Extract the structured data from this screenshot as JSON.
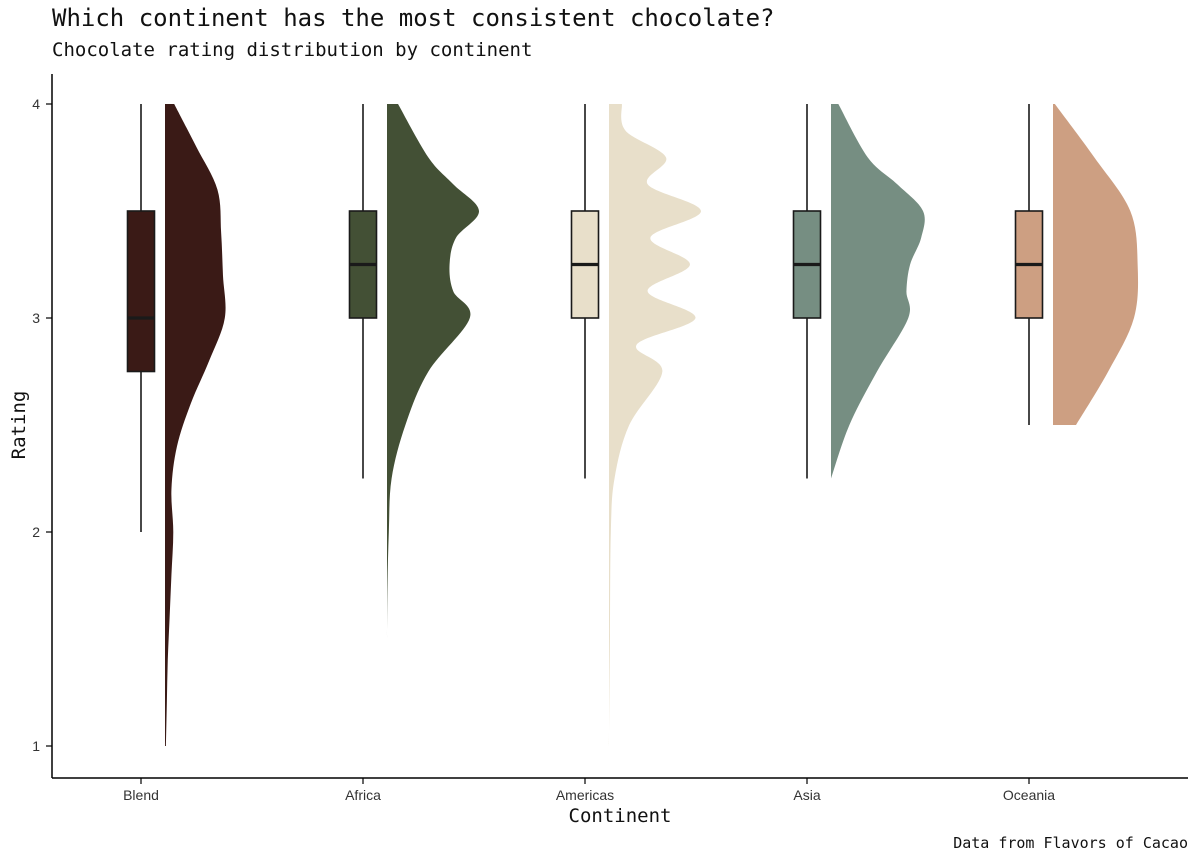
{
  "title": "Which continent has the most consistent chocolate?",
  "subtitle": "Chocolate rating distribution by continent",
  "caption": "Data from Flavors of Cacao",
  "chart_data": {
    "type": "raincloud",
    "xlabel": "Continent",
    "ylabel": "Rating",
    "ylim": [
      0.86,
      4.0
    ],
    "yticks": [
      1,
      2,
      3,
      4
    ],
    "grid": false,
    "legend": "none",
    "categories": [
      "Blend",
      "Africa",
      "Americas",
      "Asia",
      "Oceania"
    ],
    "series": [
      {
        "category": "Blend",
        "color": "#3a1a16",
        "box": {
          "min": 2.0,
          "q1": 2.75,
          "median": 3.0,
          "q3": 3.5,
          "max": 4.0
        },
        "density": [
          [
            1.0,
            0.01
          ],
          [
            1.2,
            0.02
          ],
          [
            1.4,
            0.03
          ],
          [
            1.6,
            0.05
          ],
          [
            1.8,
            0.07
          ],
          [
            2.0,
            0.09
          ],
          [
            2.2,
            0.07
          ],
          [
            2.4,
            0.13
          ],
          [
            2.6,
            0.28
          ],
          [
            2.8,
            0.48
          ],
          [
            3.0,
            0.65
          ],
          [
            3.2,
            0.63
          ],
          [
            3.4,
            0.61
          ],
          [
            3.6,
            0.57
          ],
          [
            3.8,
            0.34
          ],
          [
            4.0,
            0.1
          ]
        ]
      },
      {
        "category": "Africa",
        "color": "#435035",
        "box": {
          "min": 2.25,
          "q1": 3.0,
          "median": 3.25,
          "q3": 3.5,
          "max": 4.0
        },
        "density": [
          [
            1.5,
            0.0
          ],
          [
            1.75,
            0.005
          ],
          [
            2.0,
            0.02
          ],
          [
            2.25,
            0.05
          ],
          [
            2.5,
            0.2
          ],
          [
            2.75,
            0.45
          ],
          [
            3.0,
            0.9
          ],
          [
            3.125,
            0.72
          ],
          [
            3.25,
            0.68
          ],
          [
            3.375,
            0.75
          ],
          [
            3.5,
            1.0
          ],
          [
            3.625,
            0.72
          ],
          [
            3.75,
            0.45
          ],
          [
            4.0,
            0.12
          ]
        ]
      },
      {
        "category": "Americas",
        "color": "#e8dfca",
        "box": {
          "min": 2.25,
          "q1": 3.0,
          "median": 3.25,
          "q3": 3.5,
          "max": 4.0
        },
        "density": [
          [
            1.0,
            0.0
          ],
          [
            1.5,
            0.01
          ],
          [
            2.0,
            0.02
          ],
          [
            2.25,
            0.06
          ],
          [
            2.5,
            0.22
          ],
          [
            2.75,
            0.58
          ],
          [
            2.875,
            0.3
          ],
          [
            3.0,
            0.94
          ],
          [
            3.125,
            0.42
          ],
          [
            3.25,
            0.88
          ],
          [
            3.375,
            0.45
          ],
          [
            3.5,
            1.0
          ],
          [
            3.625,
            0.42
          ],
          [
            3.75,
            0.62
          ],
          [
            3.875,
            0.18
          ],
          [
            4.0,
            0.14
          ]
        ]
      },
      {
        "category": "Asia",
        "color": "#768e82",
        "box": {
          "min": 2.25,
          "q1": 3.0,
          "median": 3.25,
          "q3": 3.5,
          "max": 4.0
        },
        "density": [
          [
            2.25,
            0.0
          ],
          [
            2.5,
            0.2
          ],
          [
            2.75,
            0.5
          ],
          [
            3.0,
            0.84
          ],
          [
            3.125,
            0.82
          ],
          [
            3.25,
            0.86
          ],
          [
            3.375,
            0.98
          ],
          [
            3.5,
            1.0
          ],
          [
            3.625,
            0.72
          ],
          [
            3.75,
            0.4
          ],
          [
            4.0,
            0.08
          ]
        ]
      },
      {
        "category": "Oceania",
        "color": "#cd9f82",
        "box": {
          "min": 2.5,
          "q1": 3.0,
          "median": 3.25,
          "q3": 3.5,
          "max": 4.0
        },
        "density": [
          [
            2.5,
            0.25
          ],
          [
            2.75,
            0.6
          ],
          [
            3.0,
            0.88
          ],
          [
            3.25,
            0.92
          ],
          [
            3.5,
            0.84
          ],
          [
            3.75,
            0.45
          ],
          [
            4.0,
            0.02
          ]
        ]
      }
    ]
  }
}
